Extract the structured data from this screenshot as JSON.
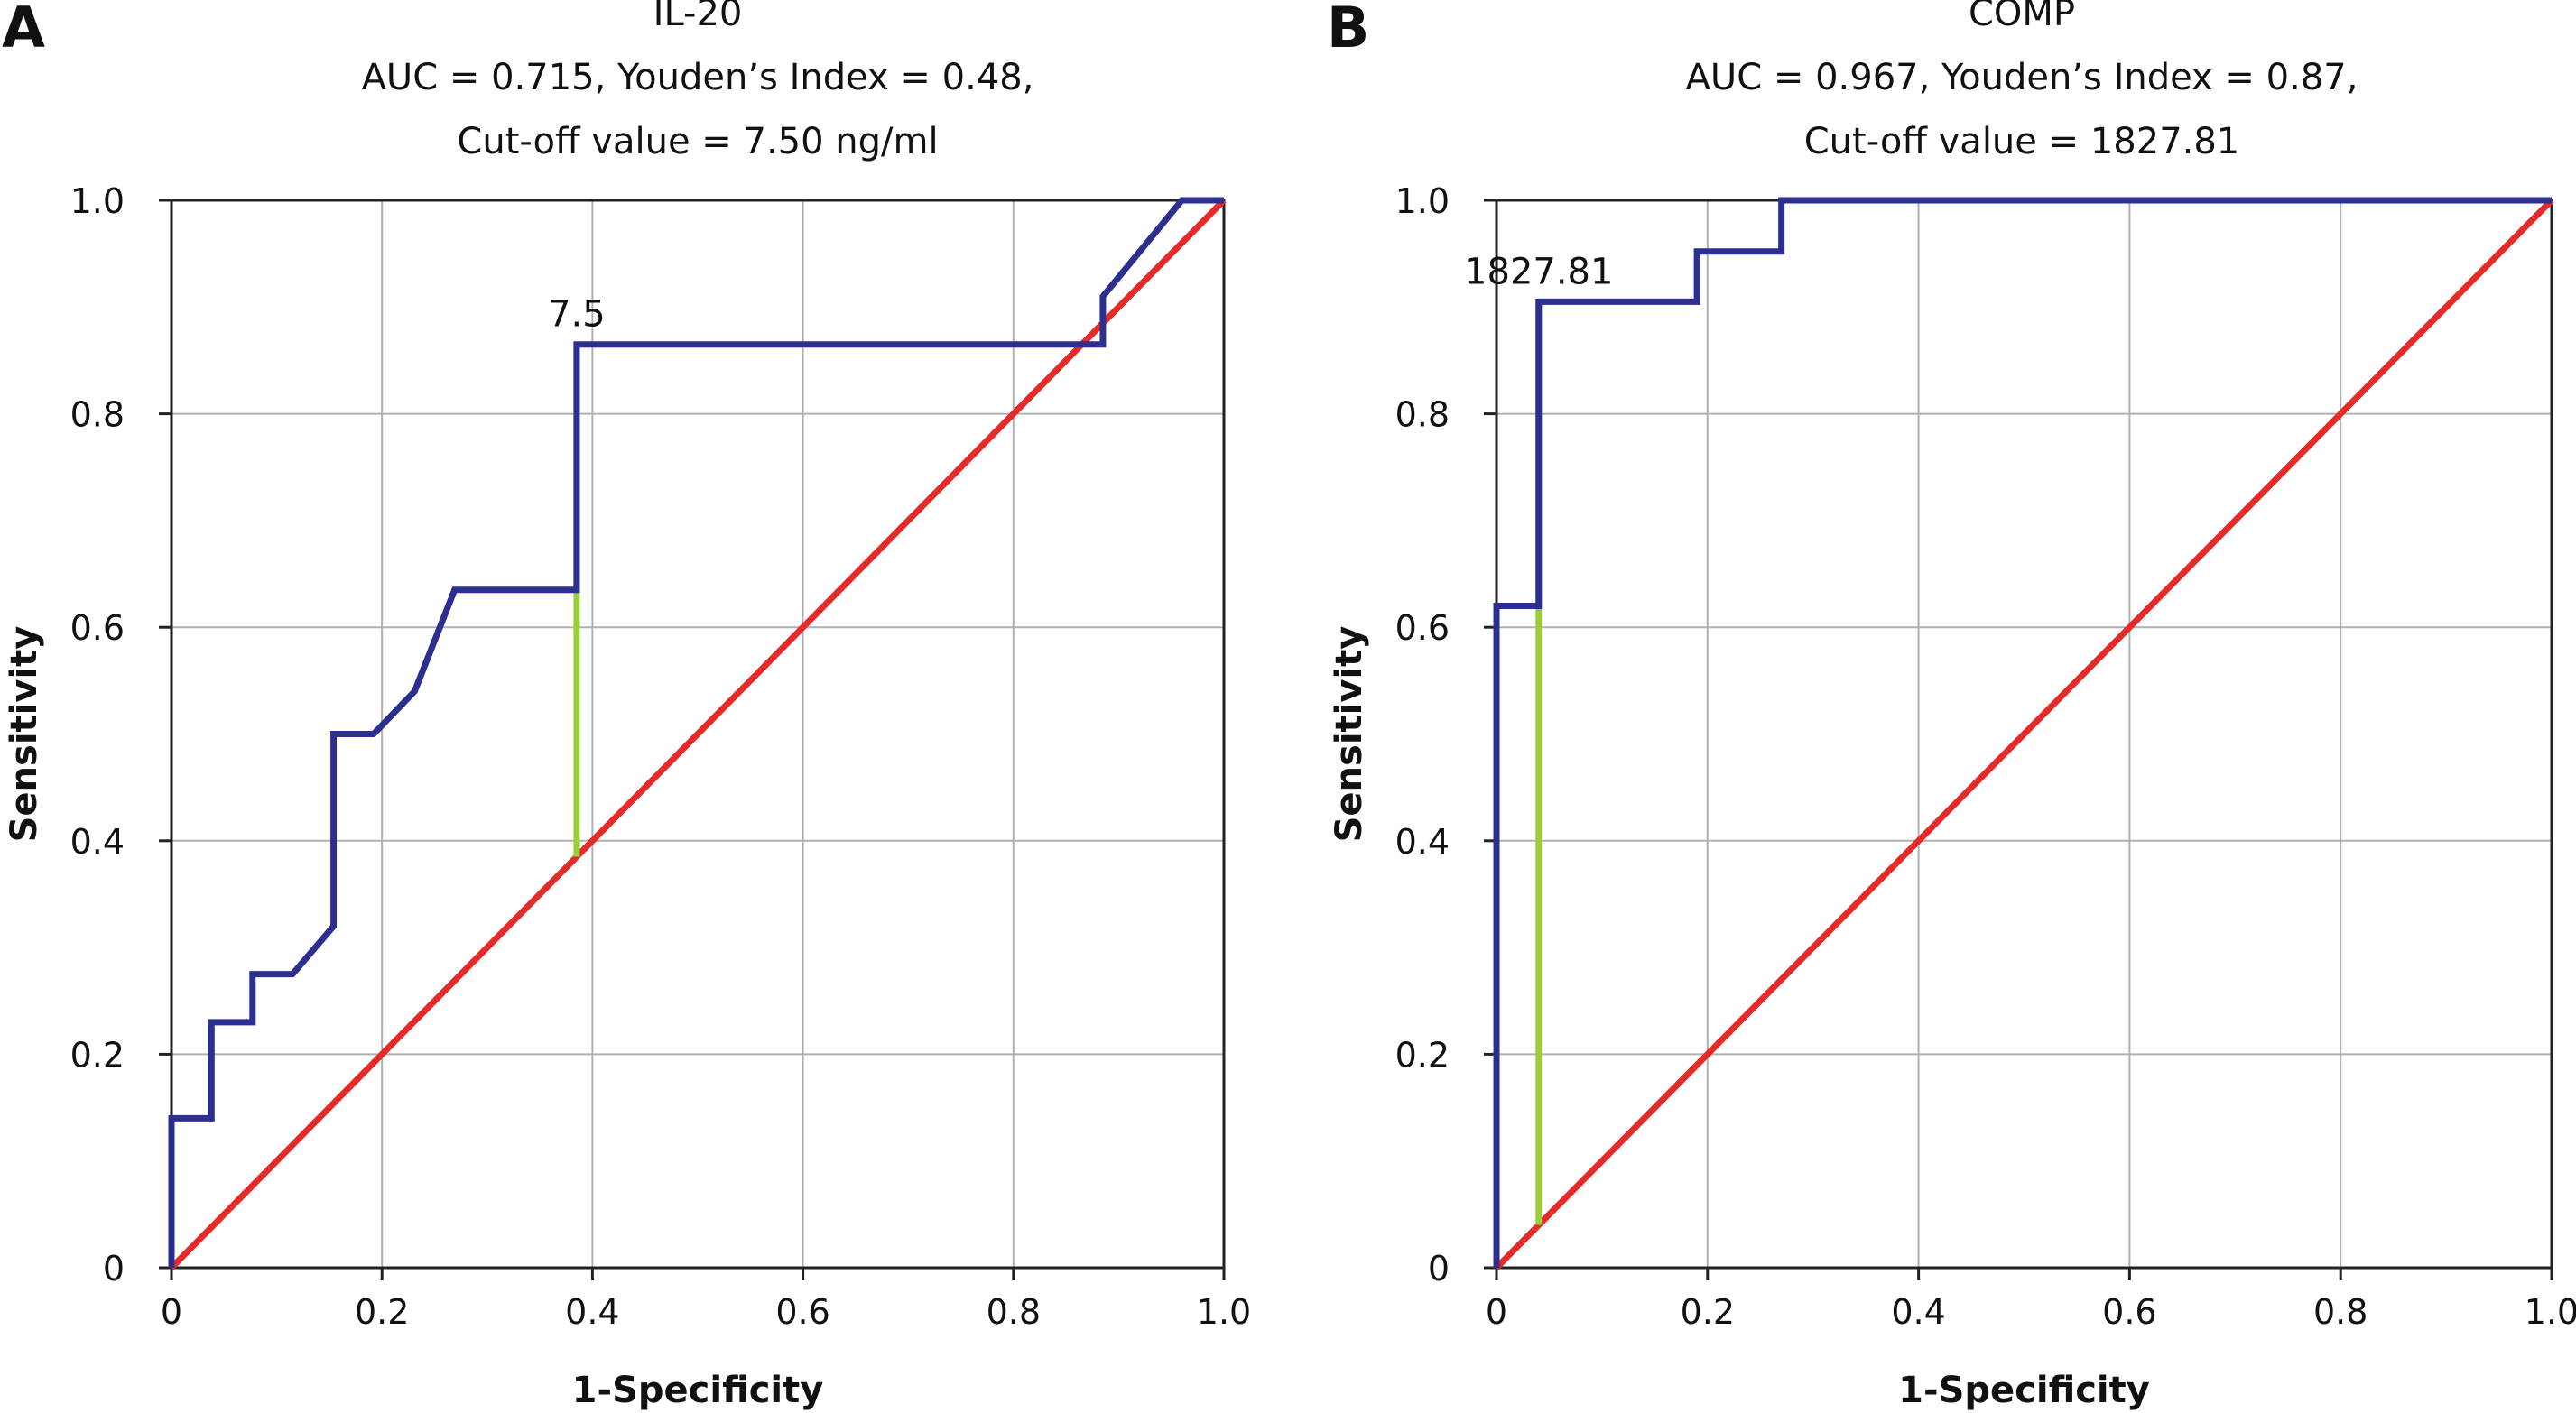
{
  "chart_data": [
    {
      "type": "line",
      "panel_label": "A",
      "title_lines": [
        "IL-20",
        "AUC = 0.715, Youden’s Index = 0.48,",
        "Cut-off value = 7.50 ng/ml"
      ],
      "xlabel": "1-Specificity",
      "ylabel": "Sensitivity",
      "xlim": [
        0,
        1
      ],
      "ylim": [
        0,
        1
      ],
      "x_ticks": [
        0,
        0.2,
        0.4,
        0.6,
        0.8,
        1.0
      ],
      "x_tick_labels": [
        "0",
        "0.2",
        "0.4",
        "0.6",
        "0.8",
        "1.0"
      ],
      "y_ticks": [
        0,
        0.2,
        0.4,
        0.6,
        0.8,
        1.0
      ],
      "y_tick_labels": [
        "0",
        "0.2",
        "0.4",
        "0.6",
        "0.8",
        "1.0"
      ],
      "grid": true,
      "colors": {
        "roc": "#2c2f8f",
        "reference": "#e52a2a",
        "youden": "#9bcf3a",
        "grid": "#b0b0b0"
      },
      "series": [
        {
          "kind": "roc",
          "points": [
            [
              0,
              0
            ],
            [
              0,
              0.14
            ],
            [
              0.038,
              0.14
            ],
            [
              0.038,
              0.23
            ],
            [
              0.077,
              0.23
            ],
            [
              0.077,
              0.275
            ],
            [
              0.115,
              0.275
            ],
            [
              0.154,
              0.32
            ],
            [
              0.154,
              0.5
            ],
            [
              0.192,
              0.5
            ],
            [
              0.231,
              0.54
            ],
            [
              0.269,
              0.635
            ],
            [
              0.385,
              0.635
            ],
            [
              0.385,
              0.865
            ],
            [
              0.885,
              0.865
            ],
            [
              0.885,
              0.91
            ],
            [
              0.96,
              1.0
            ],
            [
              1.0,
              1.0
            ]
          ]
        },
        {
          "kind": "reference",
          "points": [
            [
              0,
              0
            ],
            [
              1,
              1
            ]
          ]
        },
        {
          "kind": "youden",
          "points": [
            [
              0.385,
              0.385
            ],
            [
              0.385,
              0.865
            ]
          ]
        }
      ],
      "annotation": {
        "text": "7.5",
        "x": 0.385,
        "y": 0.865
      }
    },
    {
      "type": "line",
      "panel_label": "B",
      "title_lines": [
        "COMP",
        "AUC = 0.967, Youden’s Index = 0.87,",
        "Cut-off value = 1827.81"
      ],
      "xlabel": "1-Specificity",
      "ylabel": "Sensitivity",
      "xlim": [
        0,
        1
      ],
      "ylim": [
        0,
        1
      ],
      "x_ticks": [
        0,
        0.2,
        0.4,
        0.6,
        0.8,
        1.0
      ],
      "x_tick_labels": [
        "0",
        "0.2",
        "0.4",
        "0.6",
        "0.8",
        "1.0"
      ],
      "y_ticks": [
        0,
        0.2,
        0.4,
        0.6,
        0.8,
        1.0
      ],
      "y_tick_labels": [
        "0",
        "0.2",
        "0.4",
        "0.6",
        "0.8",
        "1.0"
      ],
      "grid": true,
      "colors": {
        "roc": "#2c2f8f",
        "reference": "#e52a2a",
        "youden": "#9bcf3a",
        "grid": "#b0b0b0"
      },
      "series": [
        {
          "kind": "roc",
          "points": [
            [
              0,
              0
            ],
            [
              0,
              0.62
            ],
            [
              0.04,
              0.62
            ],
            [
              0.04,
              0.905
            ],
            [
              0.19,
              0.905
            ],
            [
              0.19,
              0.952
            ],
            [
              0.27,
              0.952
            ],
            [
              0.27,
              1.0
            ],
            [
              1.0,
              1.0
            ]
          ]
        },
        {
          "kind": "reference",
          "points": [
            [
              0,
              0
            ],
            [
              1,
              1
            ]
          ]
        },
        {
          "kind": "youden",
          "points": [
            [
              0.04,
              0.04
            ],
            [
              0.04,
              0.905
            ]
          ]
        }
      ],
      "annotation": {
        "text": "1827.81",
        "x": 0.04,
        "y": 0.905
      }
    }
  ]
}
